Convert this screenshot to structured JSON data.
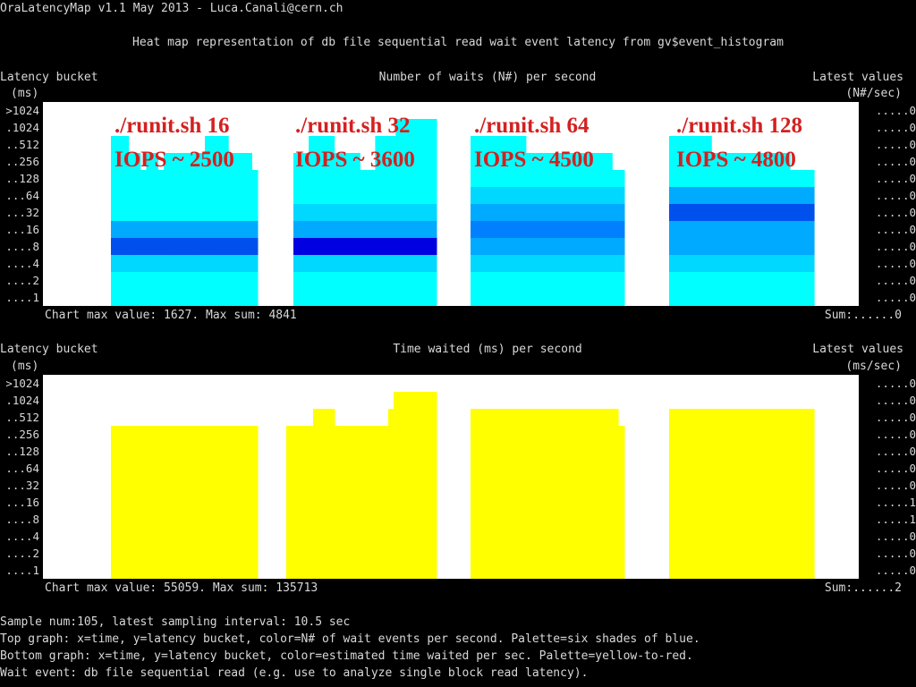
{
  "app": {
    "title": "OraLatencyMap v1.1 May 2013 - Luca.Canali@cern.ch",
    "subtitle": "Heat map representation of db file sequential read wait event latency from gv$event_histogram"
  },
  "buckets": [
    ">1024",
    ".1024",
    "..512",
    "..256",
    "..128",
    "...64",
    "...32",
    "...16",
    "....8",
    "....4",
    "....2",
    "....1"
  ],
  "top_chart": {
    "y_title_1": "Latency bucket",
    "y_title_2": "(ms)",
    "title": "Number of waits (N#) per second",
    "latest_title_1": "Latest values",
    "latest_title_2": "(N#/sec)",
    "latest_values": [
      ".....0",
      ".....0",
      ".....0",
      ".....0",
      ".....0",
      ".....0",
      ".....0",
      ".....0",
      ".....0",
      ".....0",
      ".....0",
      ".....0"
    ],
    "footer": "Chart max value: 1627. Max sum: 4841",
    "sum": "Sum:......0",
    "annotations": [
      {
        "line1": "./runit.sh 16",
        "line2": "IOPS ~ 2500"
      },
      {
        "line1": "./runit.sh 32",
        "line2": "IOPS ~ 3600"
      },
      {
        "line1": "./runit.sh 64",
        "line2": "IOPS ~ 4500"
      },
      {
        "line1": "./runit.sh 128",
        "line2": "IOPS ~ 4800"
      }
    ]
  },
  "bottom_chart": {
    "y_title_1": "Latency bucket",
    "y_title_2": "(ms)",
    "title": "Time waited (ms) per second",
    "latest_title_1": "Latest values",
    "latest_title_2": "(ms/sec)",
    "latest_values": [
      ".....0",
      ".....0",
      ".....0",
      ".....0",
      ".....0",
      ".....0",
      ".....0",
      ".....1",
      ".....1",
      ".....0",
      ".....0",
      ".....0"
    ],
    "footer": "Chart max value: 55059. Max sum: 135713",
    "sum": "Sum:......2"
  },
  "footer_lines": [
    "Sample num:105, latest sampling interval: 10.5 sec",
    "Top graph: x=time, y=latency bucket, color=N# of wait events per second. Palette=six shades of blue.",
    "Bottom graph: x=time, y=latency bucket, color=estimated time waited per sec. Palette=yellow-to-red.",
    "Wait event: db file sequential read (e.g. use to analyze single block read latency)."
  ],
  "chart_data": [
    {
      "type": "heatmap",
      "title": "Number of waits (N#) per second",
      "ylabel": "Latency bucket (ms)",
      "rows": [
        ">1024",
        ".1024",
        "..512",
        "..256",
        "..128",
        "...64",
        "...32",
        "...16",
        "....8",
        "....4",
        "....2",
        "....1"
      ],
      "palette": [
        "#ffffff",
        "#00ffff",
        "#00d8ff",
        "#00aaff",
        "#0080ff",
        "#0050ee",
        "#0000e0"
      ],
      "segments": [
        {
          "x0": 76,
          "x1": 240,
          "top": [
            2,
            2,
            2,
            3,
            3,
            4,
            3,
            3,
            4,
            3,
            3,
            3,
            3,
            3,
            3,
            3,
            2,
            2,
            2,
            2,
            3,
            3,
            3,
            3,
            4
          ],
          "bands": [
            [
              11,
              11,
              1
            ],
            [
              10,
              10,
              1
            ],
            [
              9,
              9,
              2
            ],
            [
              8,
              8,
              5
            ],
            [
              7,
              7,
              3
            ],
            [
              6,
              6,
              1
            ],
            [
              5,
              5,
              1
            ],
            [
              4,
              0,
              1
            ]
          ]
        },
        {
          "x0": 280,
          "x1": 440,
          "top": [
            3,
            3,
            3,
            2,
            2,
            2,
            2,
            2,
            3,
            3,
            3,
            3,
            3,
            4,
            4,
            4,
            2,
            2,
            2,
            2,
            1,
            1,
            1,
            1,
            1,
            1,
            1,
            1
          ],
          "bands": [
            [
              11,
              11,
              1
            ],
            [
              10,
              10,
              1
            ],
            [
              9,
              9,
              2
            ],
            [
              8,
              8,
              6
            ],
            [
              7,
              7,
              3
            ],
            [
              6,
              6,
              2
            ],
            [
              5,
              5,
              1
            ],
            [
              4,
              0,
              1
            ]
          ]
        },
        {
          "x0": 478,
          "x1": 650,
          "top": [
            2,
            2,
            2,
            2,
            2,
            2,
            2,
            2,
            2,
            3,
            3,
            3,
            3,
            3,
            3,
            3,
            3,
            3,
            3,
            3,
            3,
            3,
            3,
            4,
            4
          ],
          "bands": [
            [
              11,
              11,
              1
            ],
            [
              10,
              10,
              1
            ],
            [
              9,
              9,
              2
            ],
            [
              8,
              8,
              3
            ],
            [
              7,
              7,
              4
            ],
            [
              6,
              6,
              3
            ],
            [
              5,
              5,
              2
            ],
            [
              4,
              0,
              1
            ]
          ]
        },
        {
          "x0": 700,
          "x1": 862,
          "top": [
            2,
            2,
            2,
            2,
            2,
            2,
            2,
            3,
            3,
            3,
            3,
            3,
            3,
            3,
            3,
            3,
            3,
            3,
            3,
            3,
            4,
            4,
            4,
            4
          ],
          "bands": [
            [
              11,
              11,
              1
            ],
            [
              10,
              10,
              1
            ],
            [
              9,
              9,
              2
            ],
            [
              8,
              8,
              3
            ],
            [
              7,
              7,
              3
            ],
            [
              6,
              6,
              5
            ],
            [
              5,
              5,
              3
            ],
            [
              4,
              0,
              1
            ]
          ]
        }
      ]
    },
    {
      "type": "heatmap",
      "title": "Time waited (ms) per second",
      "ylabel": "Latency bucket (ms)",
      "rows": [
        ">1024",
        ".1024",
        "..512",
        "..256",
        "..128",
        "...64",
        "...32",
        "...16",
        "....8",
        "....4",
        "....2",
        "....1"
      ],
      "palette": [
        "#ffffff",
        "#ffff00",
        "#ffe800",
        "#ffc800",
        "#ff9000",
        "#ff5000",
        "#ff0000"
      ],
      "segments": [
        {
          "x0": 76,
          "x1": 240,
          "top": [
            3,
            3,
            3,
            3,
            3,
            3,
            3,
            3,
            3,
            3,
            3,
            3,
            3,
            3,
            3,
            3,
            3,
            3,
            3,
            3,
            3,
            3,
            3,
            3,
            3
          ],
          "bands": [
            [
              8,
              8,
              2
            ],
            [
              11,
              0,
              1
            ]
          ]
        },
        {
          "x0": 272,
          "x1": 440,
          "top": [
            3,
            3,
            3,
            3,
            3,
            2,
            2,
            2,
            2,
            3,
            3,
            3,
            3,
            3,
            3,
            3,
            3,
            3,
            3,
            2,
            1,
            1,
            1,
            1,
            1,
            1,
            1,
            1
          ],
          "bands": [
            [
              6,
              8,
              2
            ],
            [
              11,
              0,
              1
            ]
          ]
        },
        {
          "x0": 478,
          "x1": 650,
          "top": [
            2,
            2,
            2,
            2,
            2,
            2,
            2,
            2,
            2,
            2,
            2,
            2,
            2,
            2,
            2,
            2,
            2,
            2,
            2,
            2,
            2,
            2,
            2,
            2,
            3
          ],
          "bands": [
            [
              5,
              5,
              2
            ],
            [
              6,
              6,
              3
            ],
            [
              7,
              7,
              2
            ],
            [
              11,
              0,
              1
            ]
          ]
        },
        {
          "x0": 700,
          "x1": 862,
          "top": [
            2,
            2,
            2,
            2,
            2,
            2,
            2,
            2,
            2,
            2,
            2,
            2,
            2,
            2,
            2,
            2,
            2,
            2,
            2,
            2,
            2,
            2,
            2,
            2
          ],
          "bands": [
            [
              4,
              4,
              3
            ],
            [
              5,
              5,
              6
            ],
            [
              6,
              6,
              4
            ],
            [
              7,
              7,
              2
            ],
            [
              11,
              0,
              1
            ]
          ]
        }
      ]
    }
  ]
}
